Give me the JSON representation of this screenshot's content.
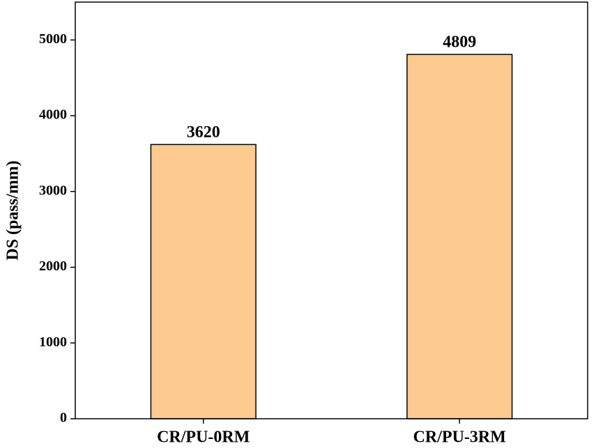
{
  "chart_data": {
    "type": "bar",
    "y_label": "DS (pass/mm)",
    "categories": [
      "CR/PU-0RM",
      "CR/PU-3RM"
    ],
    "values": [
      3620,
      4809
    ],
    "color": "#fdca8f",
    "ylim": [
      0,
      5500
    ],
    "yticks": [
      0,
      1000,
      2000,
      3000,
      4000,
      5000
    ],
    "grid": false
  }
}
